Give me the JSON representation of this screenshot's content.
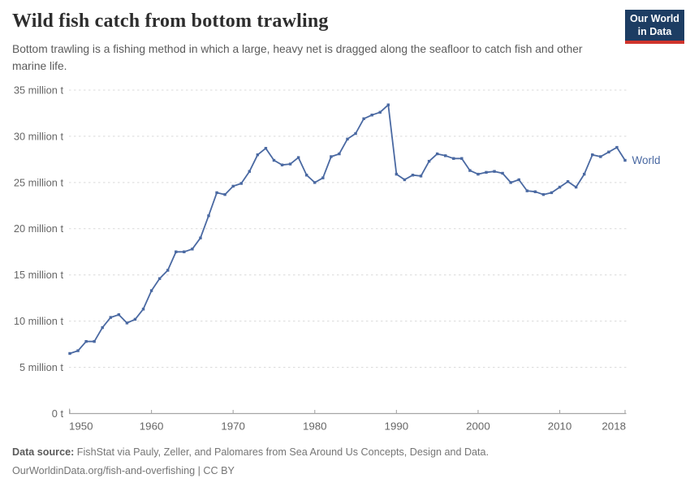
{
  "header": {
    "title": "Wild fish catch from bottom trawling",
    "subtitle": "Bottom trawling is a fishing method in which a large, heavy net is dragged along the seafloor to catch fish and other marine life.",
    "logo": {
      "line1": "Our World",
      "line2": "in Data",
      "bg_color": "#1d3d63",
      "accent_color": "#cf342c"
    }
  },
  "chart_data": {
    "type": "line",
    "title": "Wild fish catch from bottom trawling",
    "unit": "million t",
    "xlabel": "",
    "ylabel": "",
    "xlim": [
      1950,
      2018
    ],
    "ylim": [
      0,
      35
    ],
    "grid": "horizontal-dashed",
    "legend_position": "end-of-line-label",
    "point_markers": true,
    "x_ticks": [
      1950,
      1960,
      1970,
      1980,
      1990,
      2000,
      2010,
      2018
    ],
    "y_ticks": [
      {
        "v": 0,
        "label": "0 t"
      },
      {
        "v": 5,
        "label": "5 million t"
      },
      {
        "v": 10,
        "label": "10 million t"
      },
      {
        "v": 15,
        "label": "15 million t"
      },
      {
        "v": 20,
        "label": "20 million t"
      },
      {
        "v": 25,
        "label": "25 million t"
      },
      {
        "v": 30,
        "label": "30 million t"
      },
      {
        "v": 35,
        "label": "35 million t"
      }
    ],
    "x": [
      1950,
      1951,
      1952,
      1953,
      1954,
      1955,
      1956,
      1957,
      1958,
      1959,
      1960,
      1961,
      1962,
      1963,
      1964,
      1965,
      1966,
      1967,
      1968,
      1969,
      1970,
      1971,
      1972,
      1973,
      1974,
      1975,
      1976,
      1977,
      1978,
      1979,
      1980,
      1981,
      1982,
      1983,
      1984,
      1985,
      1986,
      1987,
      1988,
      1989,
      1990,
      1991,
      1992,
      1993,
      1994,
      1995,
      1996,
      1997,
      1998,
      1999,
      2000,
      2001,
      2002,
      2003,
      2004,
      2005,
      2006,
      2007,
      2008,
      2009,
      2010,
      2011,
      2012,
      2013,
      2014,
      2015,
      2016,
      2017,
      2018
    ],
    "series": [
      {
        "name": "World",
        "color": "#4a69a2",
        "values": [
          6.5,
          6.8,
          7.8,
          7.8,
          9.3,
          10.4,
          10.7,
          9.8,
          10.2,
          11.3,
          13.3,
          14.6,
          15.5,
          17.5,
          17.5,
          17.8,
          19.0,
          21.4,
          23.9,
          23.7,
          24.6,
          24.9,
          26.2,
          28.0,
          28.7,
          27.4,
          26.9,
          27.0,
          27.7,
          25.8,
          25.0,
          25.5,
          27.8,
          28.1,
          29.7,
          30.3,
          31.9,
          32.3,
          32.6,
          33.4,
          25.9,
          25.3,
          25.8,
          25.7,
          27.3,
          28.1,
          27.9,
          27.6,
          27.6,
          26.3,
          25.9,
          26.1,
          26.2,
          26.0,
          25.0,
          25.3,
          24.1,
          24.0,
          23.7,
          23.9,
          24.5,
          25.1,
          24.5,
          25.9,
          28.0,
          27.8,
          28.3,
          28.8,
          27.4
        ]
      }
    ],
    "colors": {
      "gridline": "#d9d9d9",
      "axis": "#a6a6a6",
      "tick_label": "#666666"
    }
  },
  "footer": {
    "source_label": "Data source:",
    "source_text": " FishStat via Pauly, Zeller, and Palomares from Sea Around Us Concepts, Design and Data.",
    "link_line": "OurWorldinData.org/fish-and-overfishing | CC BY"
  }
}
